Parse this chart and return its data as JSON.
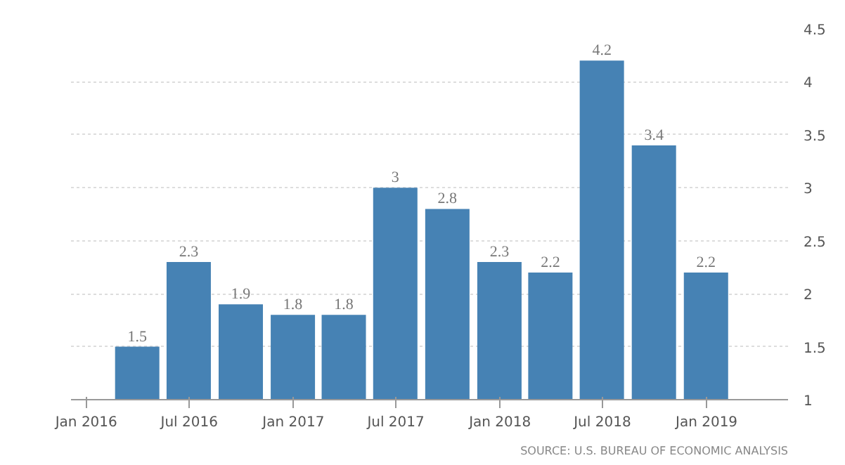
{
  "chart_data": {
    "type": "bar",
    "x": [
      "2016-03-31",
      "2016-06-30",
      "2016-09-30",
      "2016-12-31",
      "2017-03-31",
      "2017-06-30",
      "2017-09-30",
      "2017-12-31",
      "2018-03-31",
      "2018-06-30",
      "2018-09-30",
      "2018-12-31"
    ],
    "values": [
      1.5,
      2.3,
      1.9,
      1.8,
      1.8,
      3,
      2.8,
      2.3,
      2.2,
      4.2,
      3.4,
      2.2
    ],
    "color": "#4682b4",
    "data_labels": true,
    "xlim": [
      "2015-12-05",
      "2019-05-25"
    ],
    "xticks": [
      {
        "value": "2016-01-01",
        "label": "Jan 2016"
      },
      {
        "value": "2016-07-01",
        "label": "Jul 2016"
      },
      {
        "value": "2017-01-01",
        "label": "Jan 2017"
      },
      {
        "value": "2017-07-01",
        "label": "Jul 2017"
      },
      {
        "value": "2018-01-01",
        "label": "Jan 2018"
      },
      {
        "value": "2018-07-01",
        "label": "Jul 2018"
      },
      {
        "value": "2019-01-01",
        "label": "Jan 2019"
      }
    ],
    "ylim": [
      1,
      4.5
    ],
    "yticks": [
      1,
      1.5,
      2,
      2.5,
      3,
      3.5,
      4,
      4.5
    ],
    "grid": "y",
    "annotations": [
      "SOURCE: U.S. BUREAU OF ECONOMIC ANALYSIS"
    ]
  }
}
